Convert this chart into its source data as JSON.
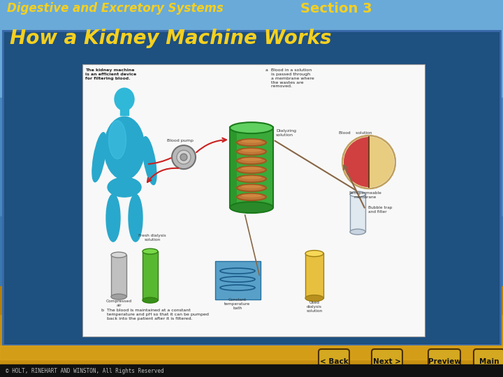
{
  "slide_title": "Digestive and Excretory Systems",
  "section_label": "Section 3",
  "slide_subtitle": "How a Kidney Machine Works",
  "copyright": "© HOLT, RINEHART AND WINSTON, All Rights Reserved",
  "title_color": "#f5d020",
  "section_color": "#f5d020",
  "subtitle_color": "#f5d020",
  "nav_buttons": [
    "< Back",
    "Next >",
    "Preview",
    "Main"
  ],
  "nav_bg_top": "#d4a820",
  "nav_bg_bot": "#a07808",
  "footer_bg": "#000000",
  "footer_color": "#cccccc",
  "content_panel_color": "#1a4a80",
  "content_panel_border": "#2a6aaa",
  "image_bg": "#f5f5f5",
  "sky_top": "#5a9fd4",
  "sky_mid": "#4a8fc4",
  "sky_bot": "#3a7ab5",
  "land_color": "#c8960a"
}
